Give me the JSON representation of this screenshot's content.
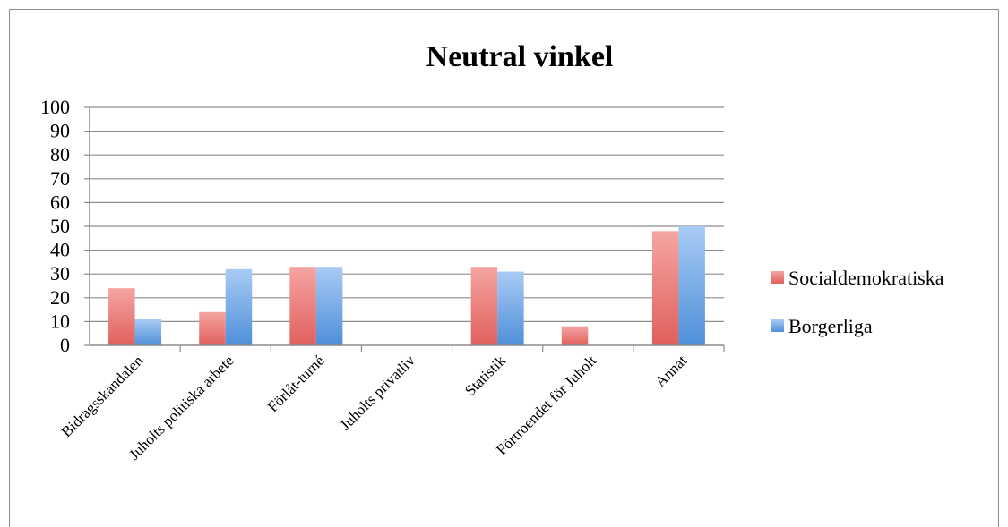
{
  "chart_data": {
    "type": "bar",
    "title": "Neutral vinkel",
    "xlabel": "",
    "ylabel": "",
    "ylim": [
      0,
      100
    ],
    "yticks": [
      0,
      10,
      20,
      30,
      40,
      50,
      60,
      70,
      80,
      90,
      100
    ],
    "grid": true,
    "legend_position": "right",
    "categories": [
      "Bidragsskandalen",
      "Juholts politiska arbete",
      "Förlåt-turné",
      "Juholts privatliv",
      "Statistik",
      "Förtroendet för Juholt",
      "Annat"
    ],
    "series": [
      {
        "name": "Socialdemokratiska",
        "color": "#e0605c",
        "color_light": "#f5a5a2",
        "values": [
          24,
          14,
          33,
          0,
          33,
          8,
          48
        ]
      },
      {
        "name": "Borgerliga",
        "color": "#4f8fd9",
        "color_light": "#a8cbf4",
        "values": [
          11,
          32,
          33,
          0,
          31,
          0,
          50
        ]
      }
    ]
  }
}
